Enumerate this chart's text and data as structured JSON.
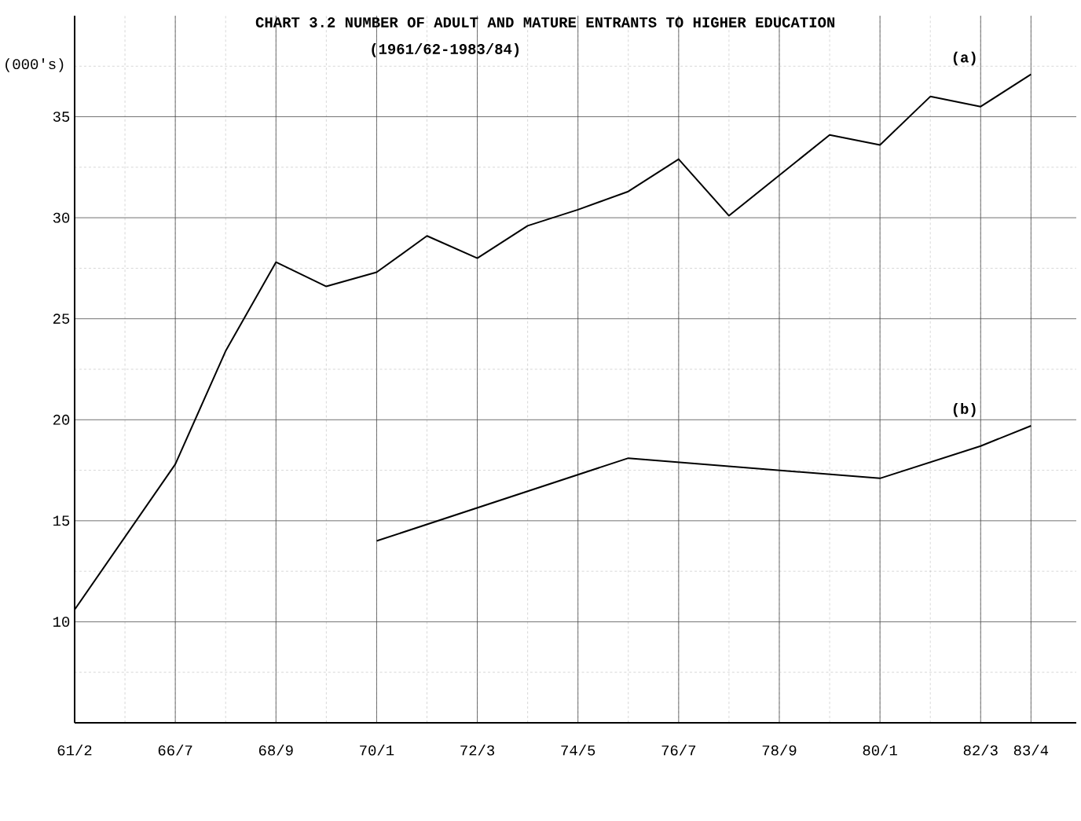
{
  "chart_data": {
    "type": "line",
    "title": "CHART 3.2  NUMBER OF ADULT AND MATURE ENTRANTS TO HIGHER EDUCATION",
    "subtitle": "(1961/62-1983/84)",
    "ylabel": "(000's)",
    "categories": [
      "61/2",
      null,
      "66/7",
      null,
      "68/9",
      null,
      "70/1",
      null,
      "72/3",
      null,
      "74/5",
      null,
      "76/7",
      null,
      "78/9",
      null,
      "80/1",
      null,
      "82/3",
      "83/4"
    ],
    "series": [
      {
        "name": "(a)",
        "color": "#000000",
        "values": [
          10.6,
          null,
          17.8,
          23.4,
          27.8,
          26.6,
          27.3,
          29.1,
          28.0,
          29.6,
          30.4,
          31.3,
          32.9,
          30.1,
          32.1,
          34.1,
          33.6,
          36.0,
          35.5,
          37.1
        ]
      },
      {
        "name": "(b)",
        "color": "#000000",
        "values": [
          null,
          null,
          null,
          null,
          null,
          null,
          14.0,
          null,
          null,
          null,
          null,
          18.1,
          null,
          null,
          null,
          null,
          17.1,
          null,
          18.7,
          19.7
        ]
      }
    ],
    "ylim": [
      5,
      40
    ],
    "yticks": [
      10,
      15,
      20,
      25,
      30,
      35
    ],
    "grid": true,
    "marker": "none",
    "line_style": "solid"
  }
}
